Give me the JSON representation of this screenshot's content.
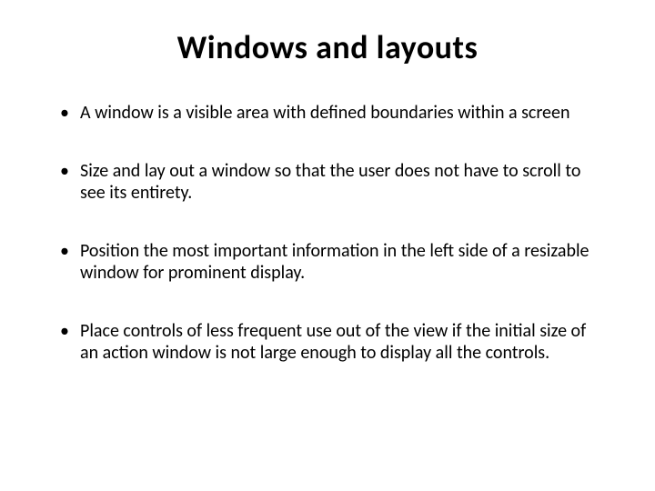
{
  "slide": {
    "title": "Windows and layouts",
    "bullets": [
      "A window is a visible area with defined boundaries within a screen",
      "Size and lay out a window so that the user does not have to scroll to see its entirety.",
      "Position the most important information in the left side of a resizable window for prominent display.",
      "Place controls of less frequent use out of the view if the initial size of an action window is not large enough to display all the controls."
    ],
    "title_fontsize": 36,
    "bullet_fontsize": 20,
    "text_color": "#000000",
    "background_color": "#ffffff",
    "bullet_spacing": 40
  }
}
